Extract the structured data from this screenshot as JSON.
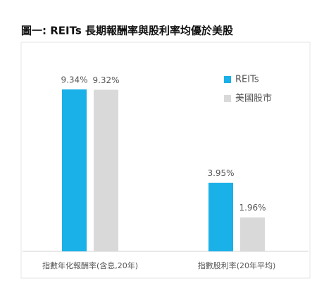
{
  "chart_data": {
    "type": "bar",
    "title": "圖一: REITs 長期報酬率與股利率均優於美股",
    "categories": [
      "指數年化報酬率(含息,20年)",
      "指數股利率(20年平均)"
    ],
    "series": [
      {
        "name": "REITs",
        "color": "#1ab0e8",
        "values": [
          9.34,
          3.95
        ],
        "value_labels": [
          "9.34%",
          "3.95%"
        ]
      },
      {
        "name": "美國股市",
        "color": "#d9d9d9",
        "values": [
          9.32,
          1.96
        ],
        "value_labels": [
          "9.32%",
          "1.96%"
        ]
      }
    ]
  }
}
